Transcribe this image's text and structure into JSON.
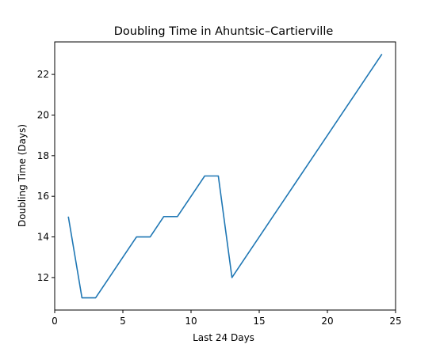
{
  "chart_data": {
    "type": "line",
    "title": "Doubling Time in  Ahuntsic–Cartierville",
    "xlabel": "Last 24 Days",
    "ylabel": "Doubling Time (Days)",
    "xlim": [
      0,
      25
    ],
    "ylim": [
      10.4,
      23.6
    ],
    "xticks": [
      "0",
      "5",
      "10",
      "15",
      "20",
      "25"
    ],
    "yticks": [
      "12",
      "14",
      "16",
      "18",
      "20",
      "22"
    ],
    "grid": false,
    "series": [
      {
        "color": "#1f77b4",
        "x": [
          1,
          2,
          3,
          4,
          5,
          6,
          7,
          8,
          9,
          10,
          11,
          12,
          13,
          14,
          15,
          16,
          17,
          18,
          19,
          20,
          21,
          22,
          23,
          24
        ],
        "values": [
          15,
          11,
          11,
          12,
          13,
          14,
          14,
          15,
          15,
          16,
          17,
          17,
          12,
          13,
          14,
          15,
          16,
          17,
          18,
          19,
          20,
          21,
          22,
          23
        ]
      }
    ]
  }
}
